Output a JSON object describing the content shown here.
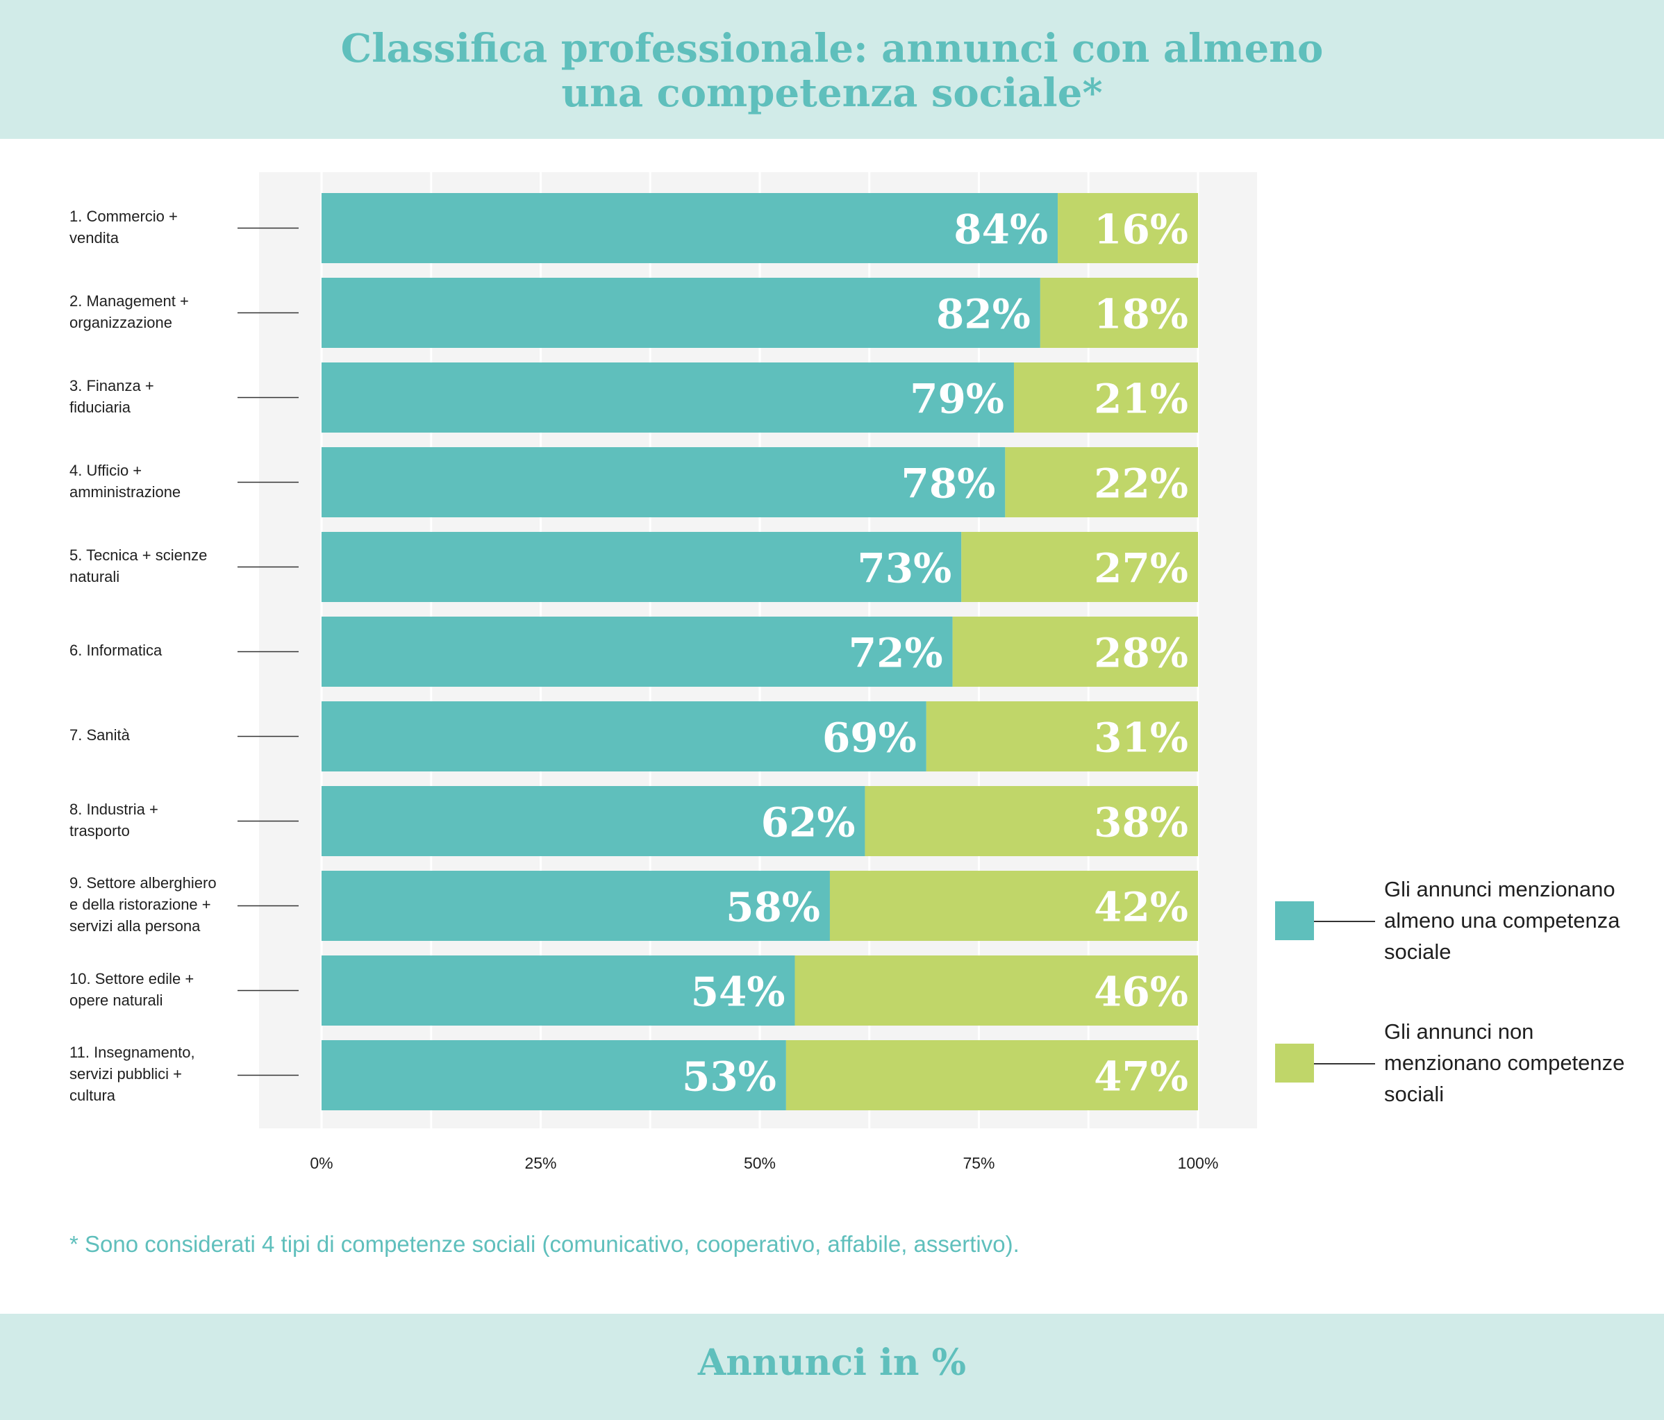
{
  "header": {
    "title": "Classifica professionale: annunci con almeno\nuna competenza sociale*"
  },
  "chart_data": {
    "type": "bar",
    "orientation": "horizontal",
    "stacked": true,
    "categories": [
      "1. Commercio +\n vendita",
      "2. Management +\norganizzazione",
      "3. Finanza +\nfiduciaria",
      "4. Ufficio +\namministrazione",
      "5. Tecnica + scienze\nnaturali",
      "6. Informatica",
      "7. Sanità",
      "8. Industria +\ntrasporto",
      "9. Settore alberghiero\ne della ristorazione +\nservizi alla persona",
      "10. Settore edile +\nopere naturali",
      "11. Insegnamento,\nservizi pubblici +\ncultura"
    ],
    "series": [
      {
        "name": "Gli annunci menzionano almeno una competenza sociale",
        "values": [
          84,
          82,
          79,
          78,
          73,
          72,
          69,
          62,
          58,
          54,
          53
        ]
      },
      {
        "name": "Gli annunci non menzionano competenze sociali",
        "values": [
          16,
          18,
          21,
          22,
          27,
          28,
          31,
          38,
          42,
          46,
          47
        ]
      }
    ],
    "value_suffix": "%",
    "xlim": [
      0,
      100
    ],
    "x_ticks": [
      "0%",
      "25%",
      "50%",
      "75%",
      "100%"
    ],
    "grid": true,
    "legend": "right",
    "colors": [
      "#5fbfbc",
      "#c0d669"
    ]
  },
  "footnote": "* Sono considerati 4 tipi di competenze sociali (comunicativo, cooperativo, affabile, assertivo).",
  "footer": {
    "units": "Annunci in %"
  },
  "colors": {
    "band": "#d1ebe8",
    "plot_bg": "#f4f4f4",
    "accent": "#5fbfbc",
    "secondary": "#c0d669"
  }
}
